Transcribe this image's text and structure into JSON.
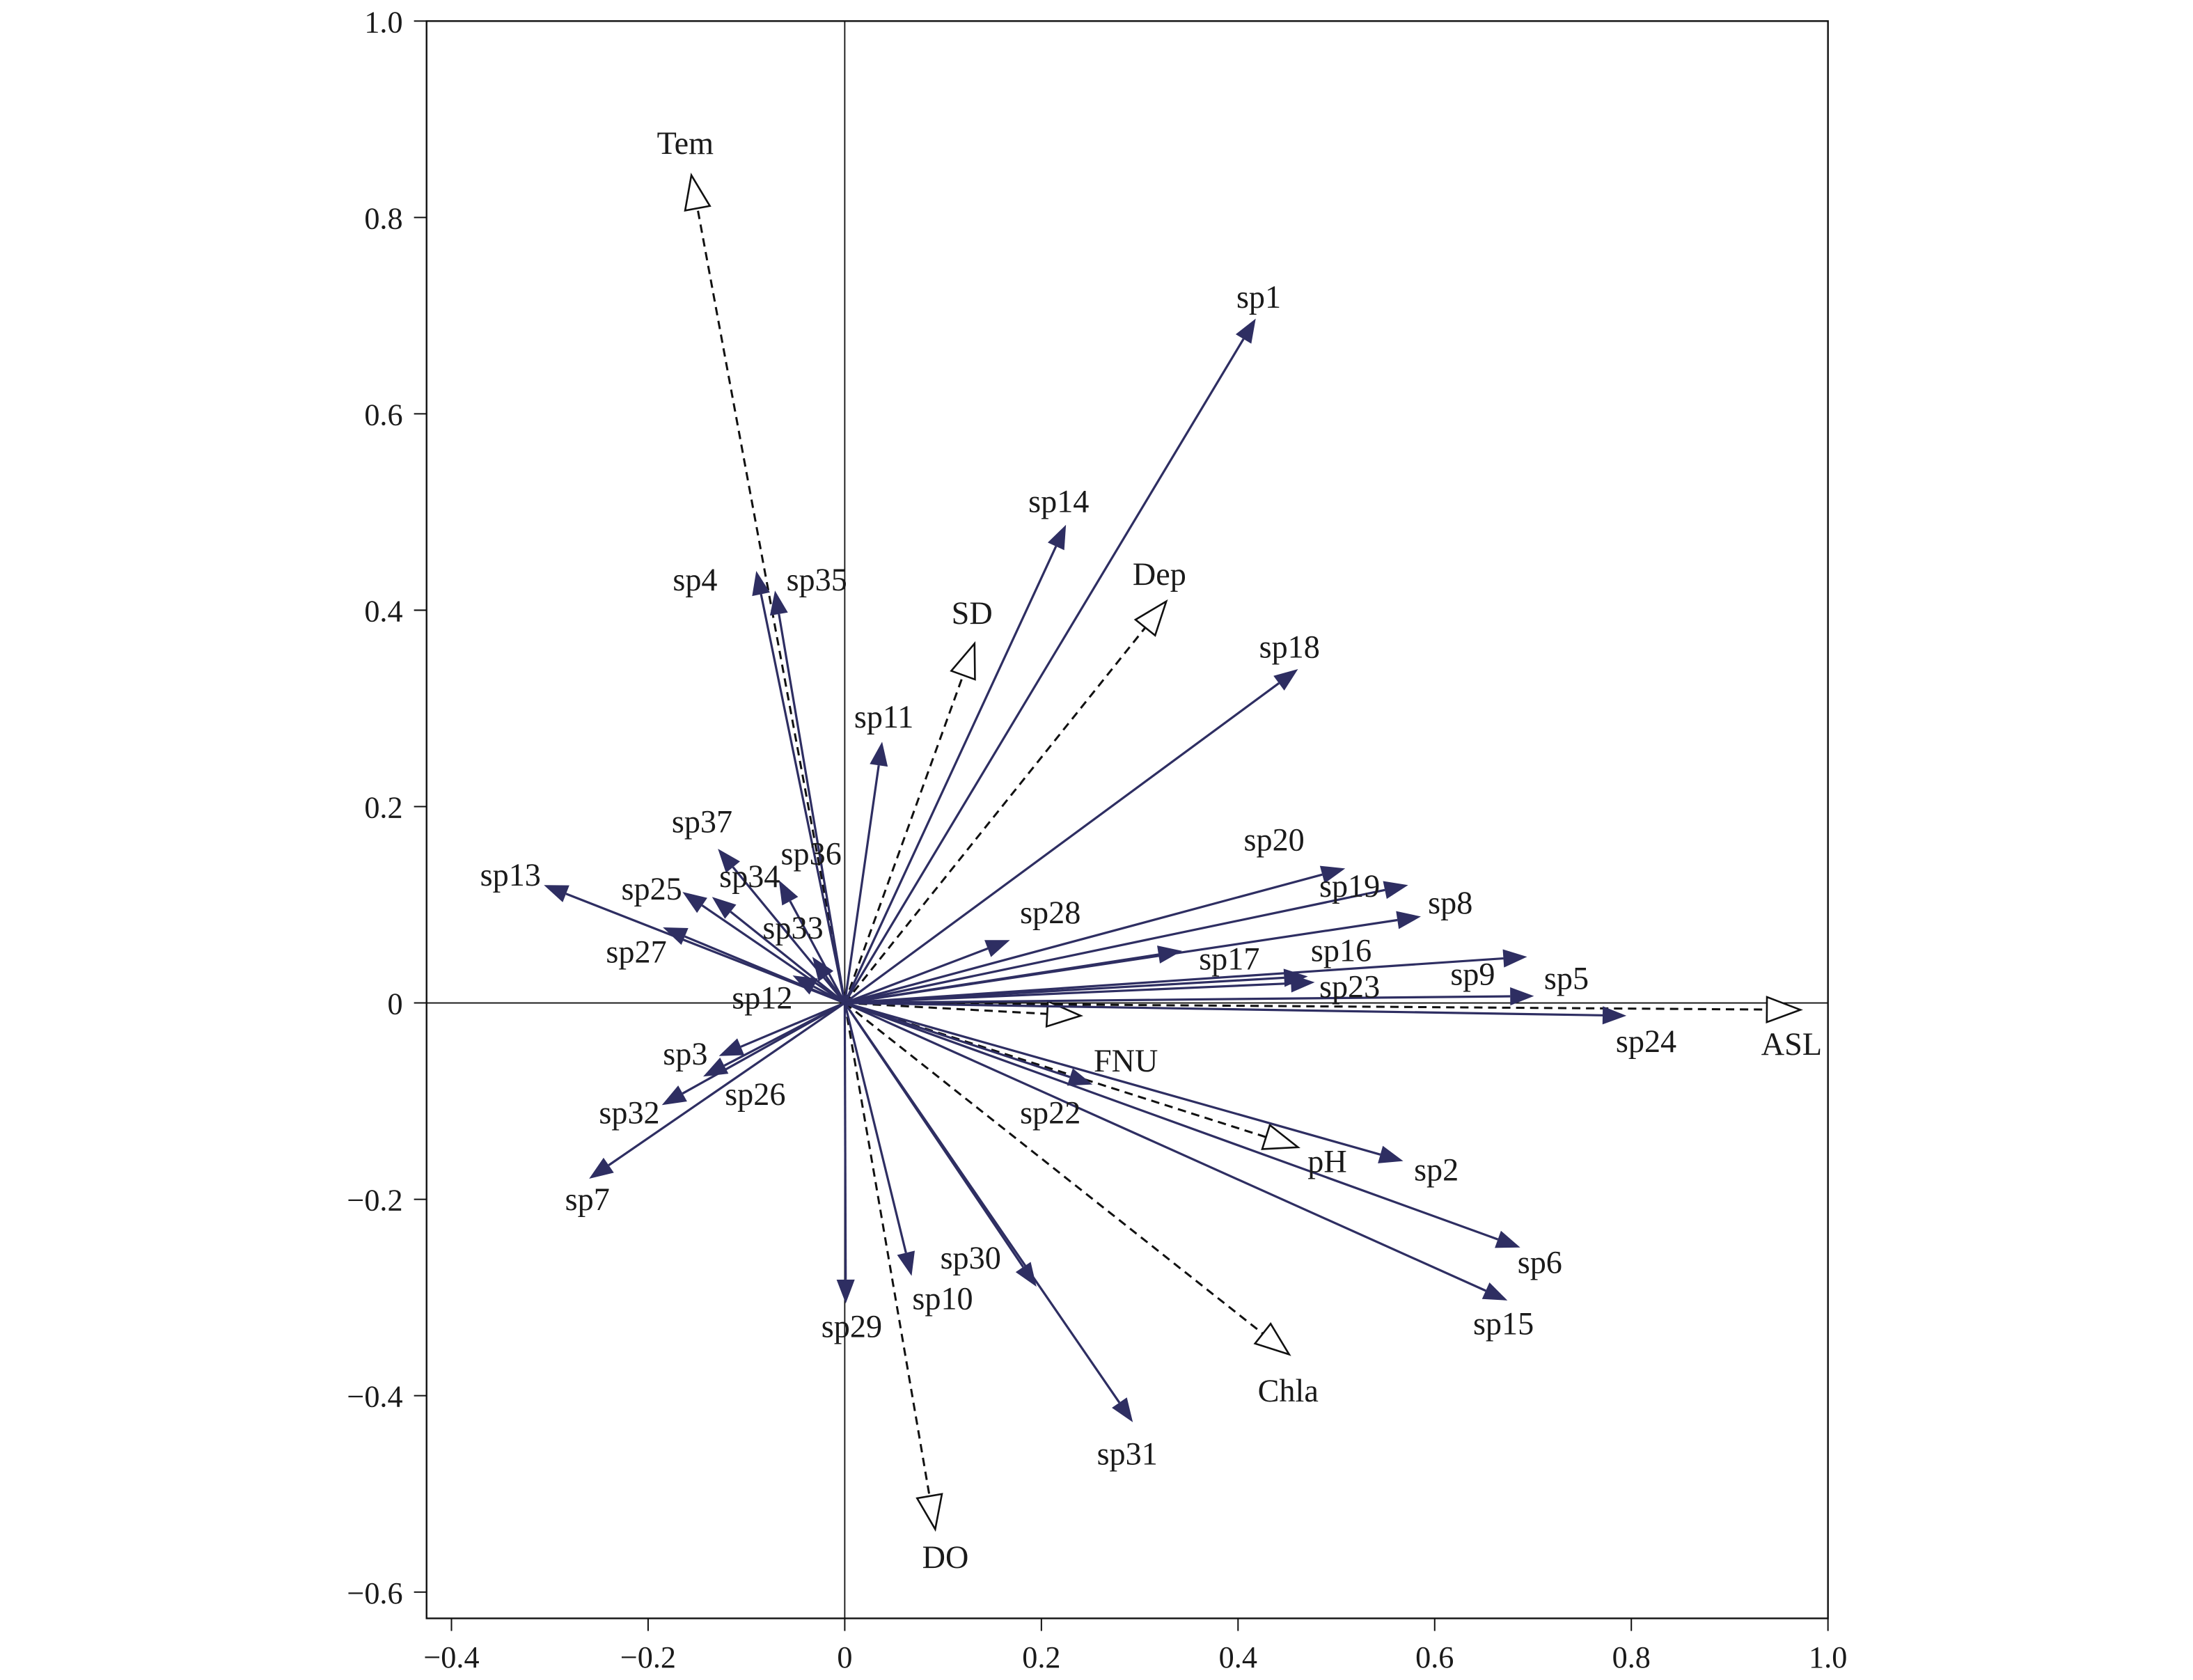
{
  "chart_data": {
    "type": "biplot",
    "title": "",
    "xlabel": "",
    "ylabel": "",
    "xlim": [
      -0.425,
      1.0
    ],
    "ylim": [
      -0.627,
      1.0
    ],
    "x_ticks": [
      -0.4,
      -0.2,
      0,
      0.2,
      0.4,
      0.6,
      0.8,
      1.0
    ],
    "x_tick_labels": [
      "−0.4",
      "−0.2",
      "0",
      "0.2",
      "0.4",
      "0.6",
      "0.8",
      "1.0"
    ],
    "y_ticks": [
      -0.6,
      -0.4,
      -0.2,
      0,
      0.2,
      0.4,
      0.6,
      0.8,
      1.0
    ],
    "y_tick_labels": [
      "−0.6",
      "−0.4",
      "−0.2",
      "0",
      "0.2",
      "0.4",
      "0.6",
      "0.8",
      "1.0"
    ],
    "grid": false,
    "colors": {
      "species": "#2e2e62",
      "environment": "#111111"
    },
    "species": [
      {
        "name": "sp1",
        "x": 0.418,
        "y": 0.697
      },
      {
        "name": "sp14",
        "x": 0.225,
        "y": 0.487
      },
      {
        "name": "sp18",
        "x": 0.461,
        "y": 0.34
      },
      {
        "name": "sp11",
        "x": 0.038,
        "y": 0.266
      },
      {
        "name": "sp4",
        "x": -0.09,
        "y": 0.44
      },
      {
        "name": "sp35",
        "x": -0.071,
        "y": 0.42
      },
      {
        "name": "sp20",
        "x": 0.509,
        "y": 0.137
      },
      {
        "name": "sp19",
        "x": 0.573,
        "y": 0.12
      },
      {
        "name": "sp8",
        "x": 0.586,
        "y": 0.088
      },
      {
        "name": "sp28",
        "x": 0.168,
        "y": 0.064
      },
      {
        "name": "sp17",
        "x": 0.343,
        "y": 0.053
      },
      {
        "name": "sp16",
        "x": 0.471,
        "y": 0.027
      },
      {
        "name": "sp23",
        "x": 0.478,
        "y": 0.021
      },
      {
        "name": "sp9",
        "x": 0.694,
        "y": 0.047
      },
      {
        "name": "sp5",
        "x": 0.701,
        "y": 0.007
      },
      {
        "name": "sp24",
        "x": 0.795,
        "y": -0.013
      },
      {
        "name": "sp2",
        "x": 0.568,
        "y": -0.161
      },
      {
        "name": "sp6",
        "x": 0.687,
        "y": -0.249
      },
      {
        "name": "sp15",
        "x": 0.674,
        "y": -0.303
      },
      {
        "name": "sp22",
        "x": 0.252,
        "y": -0.083
      },
      {
        "name": "sp30",
        "x": 0.195,
        "y": -0.289
      },
      {
        "name": "sp31",
        "x": 0.293,
        "y": -0.427
      },
      {
        "name": "sp10",
        "x": 0.068,
        "y": -0.278
      },
      {
        "name": "sp29",
        "x": 0.001,
        "y": -0.306
      },
      {
        "name": "sp7",
        "x": -0.26,
        "y": -0.179
      },
      {
        "name": "sp32",
        "x": -0.186,
        "y": -0.104
      },
      {
        "name": "sp3",
        "x": -0.128,
        "y": -0.054
      },
      {
        "name": "sp26",
        "x": -0.144,
        "y": -0.075
      },
      {
        "name": "sp13",
        "x": -0.306,
        "y": 0.12
      },
      {
        "name": "sp27",
        "x": -0.185,
        "y": 0.077
      },
      {
        "name": "sp25",
        "x": -0.165,
        "y": 0.113
      },
      {
        "name": "sp34",
        "x": -0.135,
        "y": 0.108
      },
      {
        "name": "sp37",
        "x": -0.129,
        "y": 0.157
      },
      {
        "name": "sp36",
        "x": -0.067,
        "y": 0.125
      },
      {
        "name": "sp33",
        "x": -0.033,
        "y": 0.047
      },
      {
        "name": "sp12",
        "x": -0.053,
        "y": 0.028
      }
    ],
    "environment": [
      {
        "name": "Tem",
        "x": -0.156,
        "y": 0.843
      },
      {
        "name": "SD",
        "x": 0.132,
        "y": 0.366
      },
      {
        "name": "Dep",
        "x": 0.327,
        "y": 0.409
      },
      {
        "name": "ASL",
        "x": 0.972,
        "y": -0.007
      },
      {
        "name": "FNU",
        "x": 0.24,
        "y": -0.013
      },
      {
        "name": "pH",
        "x": 0.461,
        "y": -0.147
      },
      {
        "name": "Chla",
        "x": 0.452,
        "y": -0.358
      },
      {
        "name": "DO",
        "x": 0.092,
        "y": -0.536
      }
    ]
  }
}
